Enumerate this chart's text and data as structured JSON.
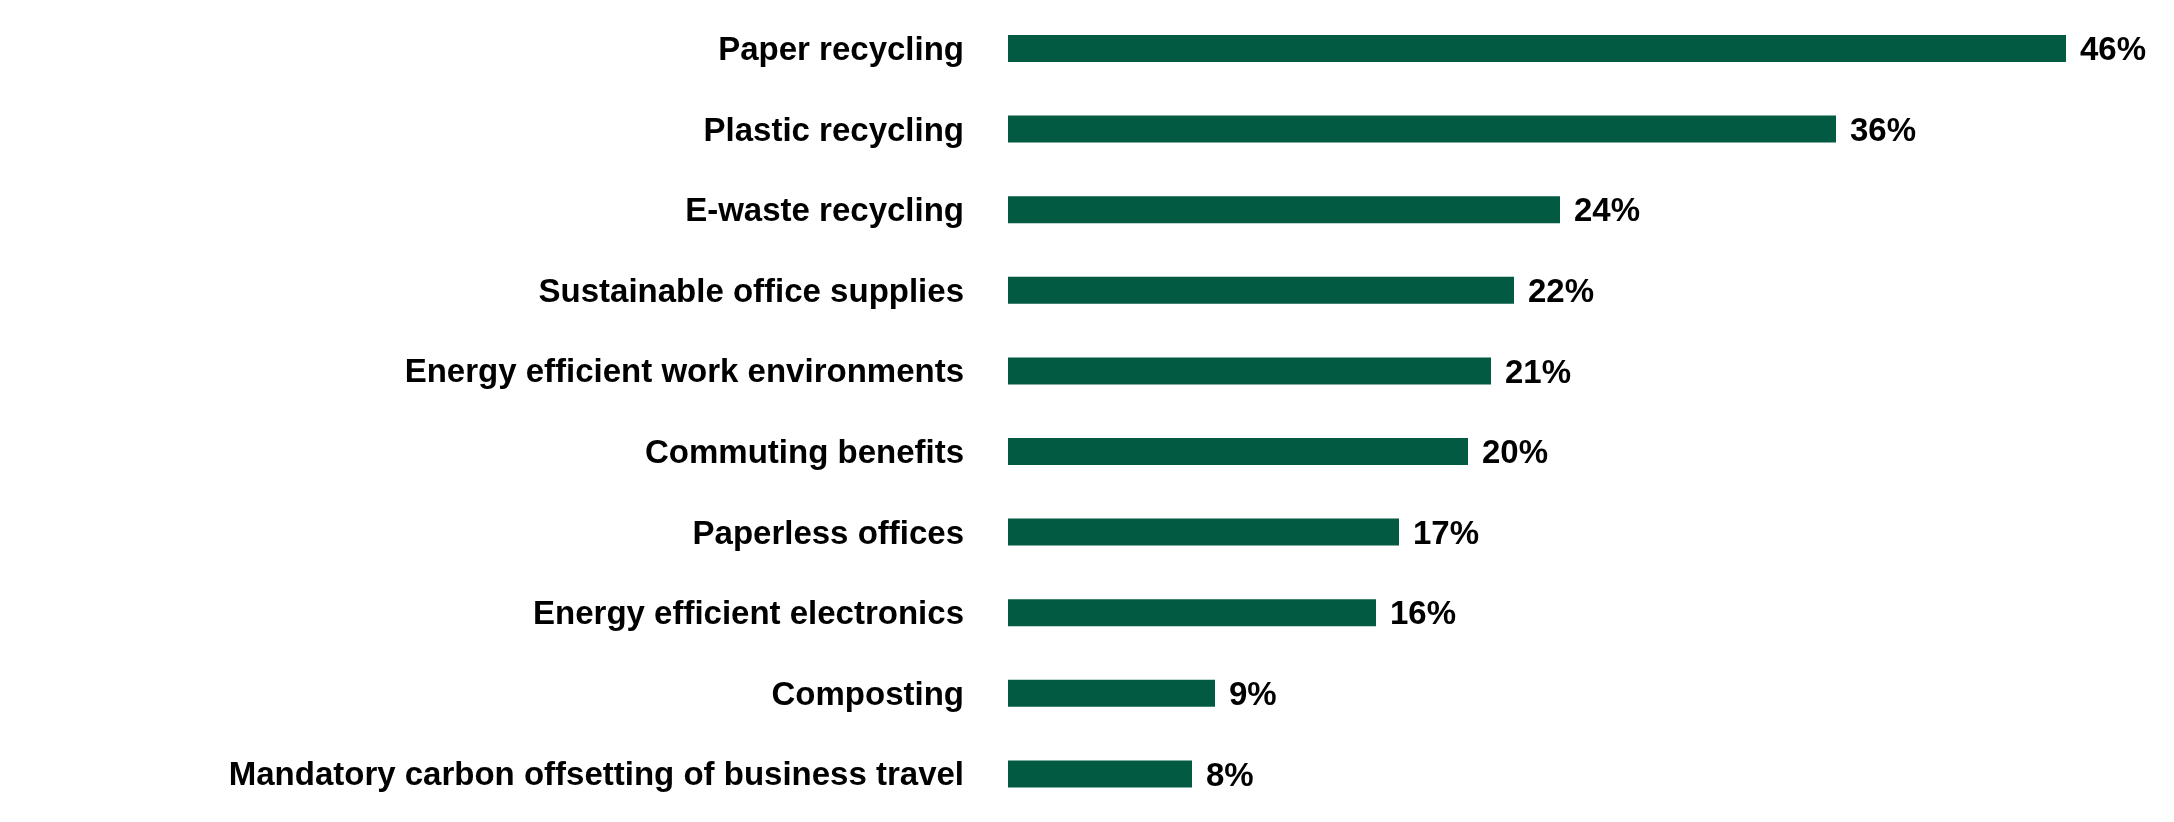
{
  "chart_data": {
    "type": "bar",
    "orientation": "horizontal",
    "categories": [
      "Paper recycling",
      "Plastic recycling",
      "E-waste recycling",
      "Sustainable office supplies",
      "Energy efficient work environments",
      "Commuting benefits",
      "Paperless offices",
      "Energy efficient electronics",
      "Composting",
      "Mandatory carbon offsetting of business travel"
    ],
    "values": [
      46,
      36,
      24,
      22,
      21,
      20,
      17,
      16,
      9,
      8
    ],
    "value_labels": [
      "46%",
      "36%",
      "24%",
      "22%",
      "21%",
      "20%",
      "17%",
      "16%",
      "9%",
      "8%"
    ],
    "color": "#035a43",
    "grid": false,
    "legend": false
  }
}
